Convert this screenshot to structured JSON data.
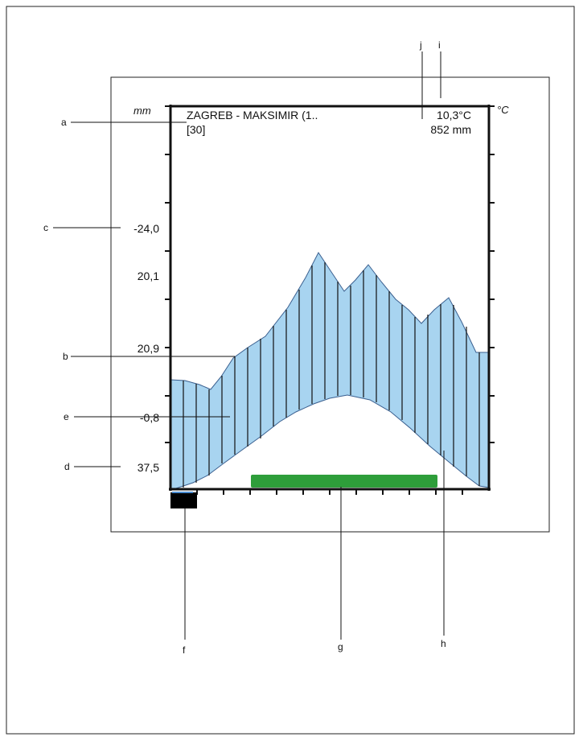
{
  "climate": {
    "station": "ZAGREB - MAKSIMIR (1..",
    "years": "[30]",
    "mean_temp": "10,3°C",
    "annual_precip": "852 mm",
    "unit_left": "mm",
    "unit_right": "°C"
  },
  "axis_values": {
    "c": "-24,0",
    "v2": "20,1",
    "v3": "20,9",
    "v4": "-0,8",
    "d": "37,5"
  },
  "callouts": {
    "a": "a",
    "b": "b",
    "c": "c",
    "d": "d",
    "e": "e",
    "f": "f",
    "g": "g",
    "h": "h",
    "i": "i",
    "j": "j"
  },
  "colors": {
    "fill": "#a8d4f0",
    "outline": "#3a5f8f",
    "hatch": "#111111",
    "bar": "#2e9e3a",
    "frost_box": "#000000"
  }
}
